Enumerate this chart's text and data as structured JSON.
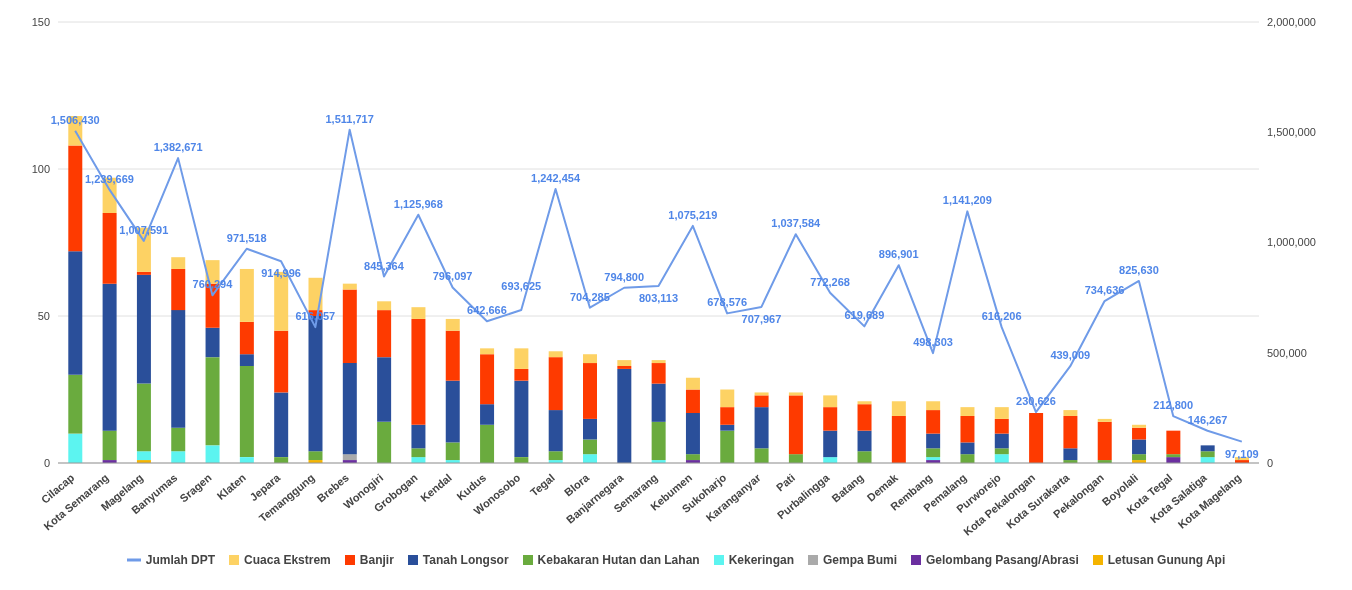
{
  "chart_data": {
    "type": "bar",
    "stacked": true,
    "categories": [
      "Cilacap",
      "Kota Semarang",
      "Magelang",
      "Banyumas",
      "Sragen",
      "Klaten",
      "Jepara",
      "Temanggung",
      "Brebes",
      "Wonogiri",
      "Grobogan",
      "Kendal",
      "Kudus",
      "Wonosobo",
      "Tegal",
      "Blora",
      "Banjarnegara",
      "Semarang",
      "Kebumen",
      "Sukoharjo",
      "Karanganyar",
      "Pati",
      "Purbalingga",
      "Batang",
      "Demak",
      "Rembang",
      "Pemalang",
      "Purworejo",
      "Kota Pekalongan",
      "Kota Surakarta",
      "Pekalongan",
      "Boyolali",
      "Kota Tegal",
      "Kota Salatiga",
      "Kota Magelang"
    ],
    "series": [
      {
        "name": "Letusan Gunung Api",
        "color": "#f5b400",
        "values": [
          0,
          0,
          1,
          0,
          0,
          0,
          0,
          1,
          0,
          0,
          0,
          0,
          0,
          0,
          0,
          0,
          0,
          0,
          0,
          0,
          0,
          0,
          0,
          0,
          0,
          0,
          0,
          0,
          0,
          0,
          0,
          1,
          0,
          0,
          0
        ]
      },
      {
        "name": "Gelombang Pasang/Abrasi",
        "color": "#6b2fa0",
        "values": [
          0,
          1,
          0,
          0,
          0,
          0,
          0,
          0,
          1,
          0,
          0,
          0,
          0,
          0,
          0,
          0,
          0,
          0,
          1,
          0,
          0,
          0,
          0,
          0,
          0,
          1,
          0,
          0,
          0,
          0,
          0,
          0,
          2,
          0,
          0
        ]
      },
      {
        "name": "Gempa Bumi",
        "color": "#aaaaaa",
        "values": [
          0,
          0,
          0,
          0,
          0,
          0,
          0,
          0,
          2,
          0,
          0,
          0,
          0,
          0,
          0,
          0,
          0,
          0,
          0,
          0,
          0,
          0,
          0,
          0,
          0,
          0,
          0,
          0,
          0,
          0,
          0,
          0,
          0,
          0,
          0
        ]
      },
      {
        "name": "Kekeringan",
        "color": "#5cf4f0",
        "values": [
          10,
          0,
          3,
          4,
          6,
          2,
          0,
          0,
          0,
          0,
          2,
          1,
          0,
          0,
          1,
          3,
          0,
          1,
          0,
          0,
          0,
          0,
          2,
          0,
          0,
          1,
          0,
          3,
          0,
          0,
          0,
          0,
          0,
          2,
          0
        ]
      },
      {
        "name": "Kebakaran Hutan dan Lahan",
        "color": "#6aab3e",
        "values": [
          20,
          10,
          23,
          8,
          30,
          31,
          2,
          3,
          0,
          14,
          3,
          6,
          13,
          2,
          3,
          5,
          0,
          13,
          2,
          11,
          5,
          3,
          0,
          4,
          0,
          3,
          3,
          2,
          0,
          1,
          1,
          2,
          1,
          2,
          0
        ]
      },
      {
        "name": "Tanah Longsor",
        "color": "#2a4f9a",
        "values": [
          42,
          50,
          37,
          40,
          10,
          4,
          22,
          46,
          31,
          22,
          8,
          21,
          7,
          26,
          14,
          7,
          32,
          13,
          14,
          2,
          14,
          0,
          9,
          7,
          0,
          5,
          4,
          5,
          0,
          4,
          0,
          5,
          0,
          2,
          0
        ]
      },
      {
        "name": "Banjir",
        "color": "#fe3a00",
        "values": [
          36,
          24,
          1,
          14,
          15,
          11,
          21,
          2,
          25,
          16,
          36,
          17,
          17,
          4,
          18,
          19,
          1,
          7,
          8,
          6,
          4,
          20,
          8,
          9,
          16,
          8,
          9,
          5,
          17,
          11,
          13,
          4,
          8,
          0,
          1
        ]
      },
      {
        "name": "Cuaca Ekstrem",
        "color": "#fdd264",
        "values": [
          10,
          12,
          15,
          4,
          8,
          18,
          20,
          11,
          2,
          3,
          4,
          4,
          2,
          7,
          2,
          3,
          2,
          1,
          4,
          6,
          1,
          1,
          4,
          1,
          5,
          3,
          3,
          4,
          0,
          2,
          1,
          1,
          0,
          0,
          1
        ]
      },
      {
        "name": "Jumlah DPT",
        "type": "line",
        "axis": "y2",
        "color": "#6f9be8",
        "value_labels": [
          "1,506,430",
          "1,239,669",
          "1,007,591",
          "1,382,671",
          "760,294",
          "971,518",
          "914,996",
          "616,057",
          "1,511,717",
          "845,364",
          "1,125,968",
          "796,097",
          "642,666",
          "693,625",
          "1,242,454",
          "704,285",
          "794,800",
          "803,113",
          "1,075,219",
          "678,576",
          "707,967",
          "1,037,584",
          "772,268",
          "619,689",
          "896,901",
          "498,303",
          "1,141,209",
          "616,206",
          "230,626",
          "439,009",
          "734,636",
          "825,630",
          "212,800",
          "146,267",
          "97,109"
        ],
        "values": [
          1506430,
          1239669,
          1007591,
          1382671,
          760294,
          971518,
          914996,
          616057,
          1511717,
          845364,
          1125968,
          796097,
          642666,
          693625,
          1242454,
          704285,
          794800,
          803113,
          1075219,
          678576,
          707967,
          1037584,
          772268,
          619689,
          896901,
          498303,
          1141209,
          616206,
          230626,
          439009,
          734636,
          825630,
          212800,
          146267,
          97109
        ]
      }
    ],
    "ylim": [
      0,
      150
    ],
    "yticks": [
      0,
      50,
      100,
      150
    ],
    "y2lim": [
      0,
      2000000
    ],
    "y2ticks": [
      0,
      {
        "value": 500000,
        "label": "500,000"
      },
      {
        "value": 1000000,
        "label": "1,000,000"
      },
      {
        "value": 1500000,
        "label": "1,500,000"
      },
      {
        "value": 2000000,
        "label": "2,000,000"
      }
    ],
    "grid": "y",
    "legend": "bottom",
    "marker": "none"
  }
}
